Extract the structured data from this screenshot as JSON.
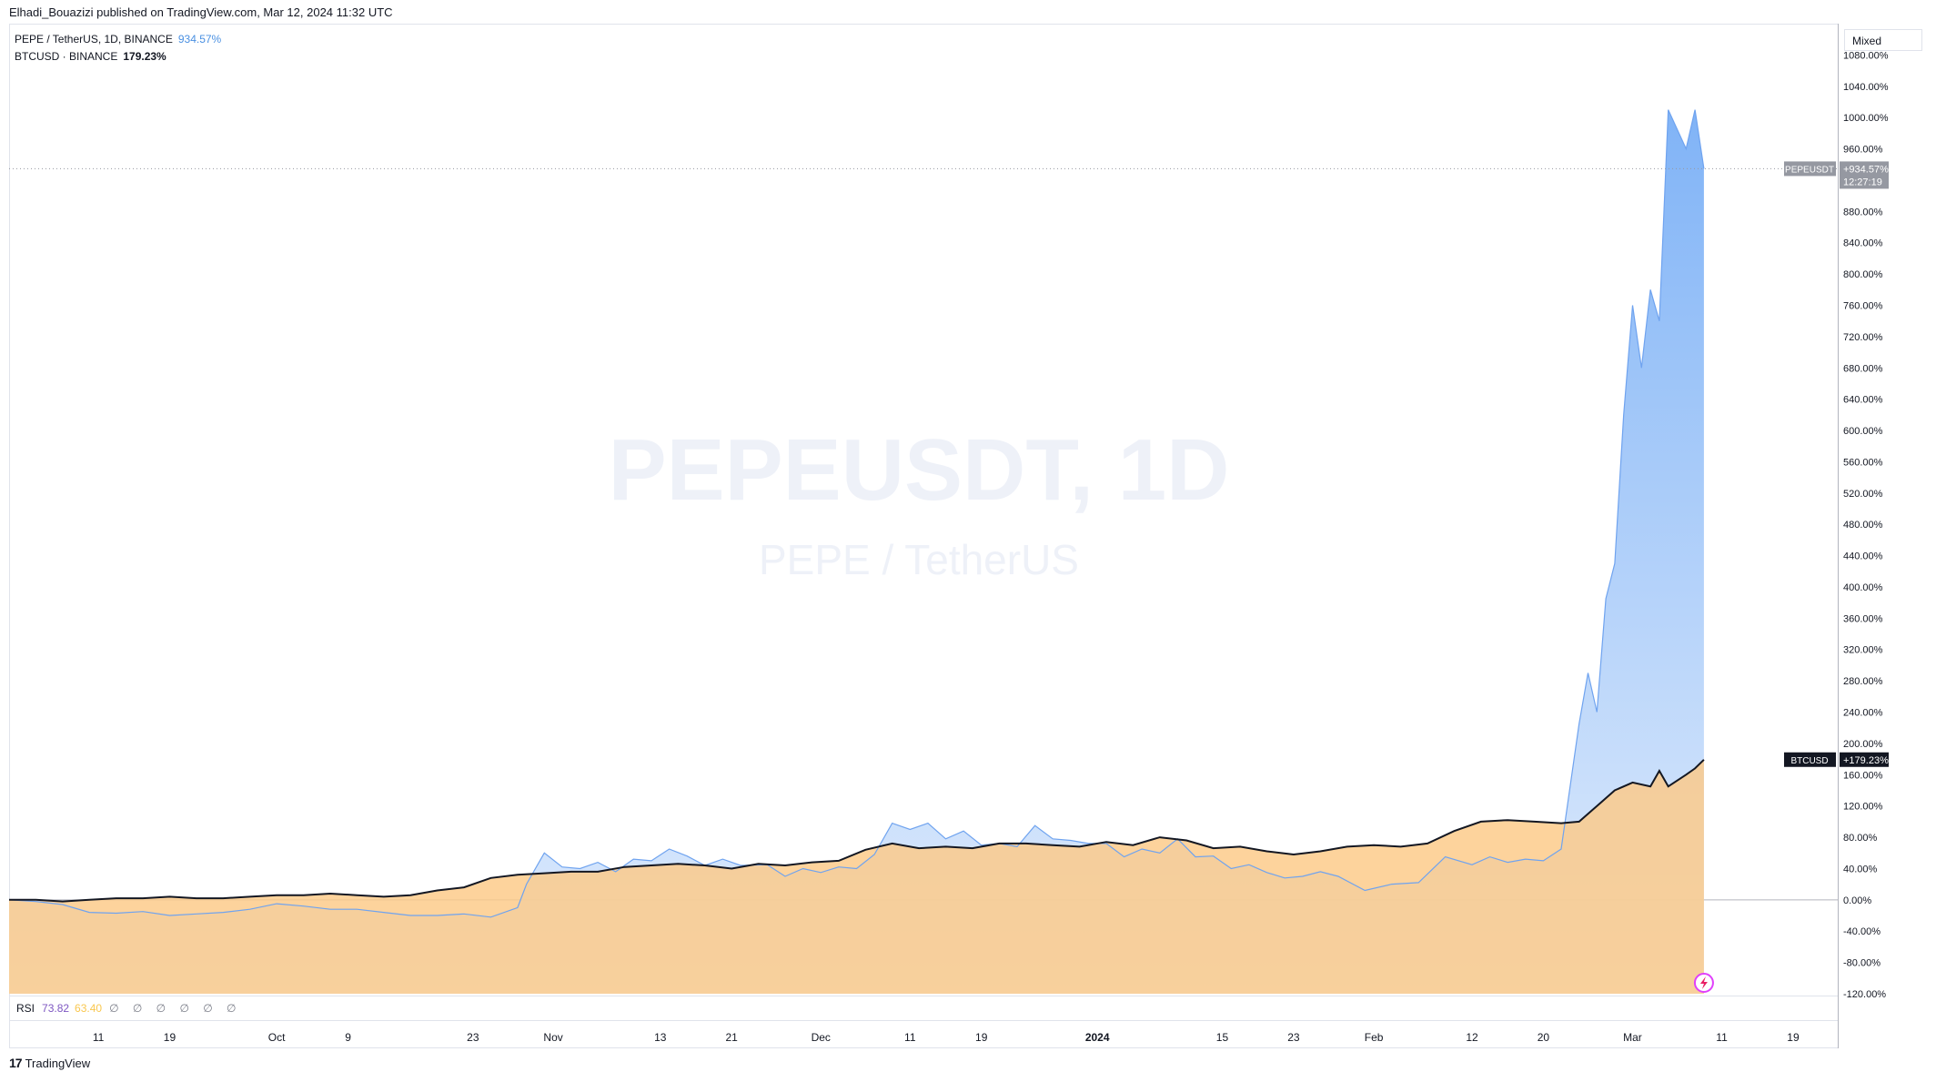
{
  "header": {
    "publisher_line": "Elhadi_Bouazizi published on TradingView.com, Mar 12, 2024 11:32 UTC"
  },
  "legend": {
    "pepe_label": "PEPE / TetherUS, 1D, BINANCE",
    "pepe_value": "934.57%",
    "btc_label": "BTCUSD · BINANCE",
    "btc_value": "179.23%"
  },
  "watermark": {
    "symbol": "PEPEUSDT, 1D",
    "pair": "PEPE / TetherUS"
  },
  "scale_mode": "Mixed",
  "rsi": {
    "label": "RSI",
    "value1": "73.82",
    "value2": "63.40",
    "nulls": "∅ ∅ ∅ ∅ ∅ ∅"
  },
  "footer": {
    "brand": "TradingView",
    "logo_glyph": "17"
  },
  "colors": {
    "pepe_line": "#6fa3ef",
    "pepe_fill_top": "#6aa6f5",
    "pepe_fill_bottom": "#dbe9fc",
    "btc_line": "#131722",
    "btc_fill": "#fcc986",
    "overlap_fill": "#d7bf9c",
    "pepe_tag": "#9598a1",
    "btc_tag": "#131722"
  },
  "chart_data": {
    "type": "area",
    "title": "PEPEUSDT, 1D",
    "ylabel": "",
    "xlabel": "",
    "ylim": [
      -120,
      1120
    ],
    "y_ticks": [
      1080,
      1040,
      1000,
      960,
      880,
      840,
      800,
      760,
      720,
      680,
      640,
      600,
      560,
      520,
      480,
      440,
      400,
      360,
      320,
      280,
      240,
      200,
      160,
      120,
      80,
      40,
      0,
      -40,
      -80,
      -120
    ],
    "x_ticks": [
      "11",
      "19",
      "Oct",
      "9",
      "23",
      "Nov",
      "13",
      "21",
      "Dec",
      "11",
      "19",
      "2024",
      "15",
      "23",
      "Feb",
      "12",
      "20",
      "Mar",
      "11",
      "19"
    ],
    "x_range": [
      "2023-09-01",
      "2024-03-24"
    ],
    "series": [
      {
        "name": "PEPEUSDT",
        "unit": "%",
        "last_label": "+934.57%",
        "countdown": "12:27:19",
        "points": [
          [
            "2023-09-01",
            0
          ],
          [
            "2023-09-04",
            -2
          ],
          [
            "2023-09-07",
            -6
          ],
          [
            "2023-09-10",
            -16
          ],
          [
            "2023-09-13",
            -17
          ],
          [
            "2023-09-16",
            -15
          ],
          [
            "2023-09-19",
            -20
          ],
          [
            "2023-09-22",
            -18
          ],
          [
            "2023-09-25",
            -16
          ],
          [
            "2023-09-28",
            -12
          ],
          [
            "2023-10-01",
            -5
          ],
          [
            "2023-10-04",
            -8
          ],
          [
            "2023-10-07",
            -12
          ],
          [
            "2023-10-10",
            -12
          ],
          [
            "2023-10-13",
            -16
          ],
          [
            "2023-10-16",
            -20
          ],
          [
            "2023-10-19",
            -20
          ],
          [
            "2023-10-22",
            -18
          ],
          [
            "2023-10-25",
            -22
          ],
          [
            "2023-10-28",
            -10
          ],
          [
            "2023-10-29",
            20
          ],
          [
            "2023-10-31",
            60
          ],
          [
            "2023-11-02",
            42
          ],
          [
            "2023-11-04",
            40
          ],
          [
            "2023-11-06",
            48
          ],
          [
            "2023-11-08",
            36
          ],
          [
            "2023-11-10",
            52
          ],
          [
            "2023-11-12",
            50
          ],
          [
            "2023-11-14",
            65
          ],
          [
            "2023-11-16",
            56
          ],
          [
            "2023-11-18",
            44
          ],
          [
            "2023-11-20",
            52
          ],
          [
            "2023-11-22",
            44
          ],
          [
            "2023-11-25",
            45
          ],
          [
            "2023-11-27",
            30
          ],
          [
            "2023-11-29",
            40
          ],
          [
            "2023-12-01",
            35
          ],
          [
            "2023-12-03",
            42
          ],
          [
            "2023-12-05",
            40
          ],
          [
            "2023-12-07",
            58
          ],
          [
            "2023-12-09",
            98
          ],
          [
            "2023-12-11",
            90
          ],
          [
            "2023-12-13",
            98
          ],
          [
            "2023-12-15",
            78
          ],
          [
            "2023-12-17",
            88
          ],
          [
            "2023-12-19",
            70
          ],
          [
            "2023-12-21",
            72
          ],
          [
            "2023-12-23",
            68
          ],
          [
            "2023-12-25",
            95
          ],
          [
            "2023-12-27",
            78
          ],
          [
            "2023-12-29",
            76
          ],
          [
            "2023-12-31",
            72
          ],
          [
            "2024-01-02",
            72
          ],
          [
            "2024-01-04",
            55
          ],
          [
            "2024-01-06",
            65
          ],
          [
            "2024-01-08",
            60
          ],
          [
            "2024-01-10",
            78
          ],
          [
            "2024-01-12",
            55
          ],
          [
            "2024-01-14",
            56
          ],
          [
            "2024-01-16",
            40
          ],
          [
            "2024-01-18",
            45
          ],
          [
            "2024-01-20",
            35
          ],
          [
            "2024-01-22",
            28
          ],
          [
            "2024-01-24",
            30
          ],
          [
            "2024-01-26",
            36
          ],
          [
            "2024-01-28",
            30
          ],
          [
            "2024-01-31",
            12
          ],
          [
            "2024-02-03",
            20
          ],
          [
            "2024-02-06",
            22
          ],
          [
            "2024-02-09",
            55
          ],
          [
            "2024-02-12",
            45
          ],
          [
            "2024-02-14",
            55
          ],
          [
            "2024-02-16",
            48
          ],
          [
            "2024-02-18",
            52
          ],
          [
            "2024-02-20",
            50
          ],
          [
            "2024-02-22",
            65
          ],
          [
            "2024-02-24",
            225
          ],
          [
            "2024-02-25",
            290
          ],
          [
            "2024-02-26",
            240
          ],
          [
            "2024-02-27",
            385
          ],
          [
            "2024-02-28",
            430
          ],
          [
            "2024-02-29",
            620
          ],
          [
            "2024-03-01",
            760
          ],
          [
            "2024-03-02",
            680
          ],
          [
            "2024-03-03",
            780
          ],
          [
            "2024-03-04",
            740
          ],
          [
            "2024-03-05",
            1010
          ],
          [
            "2024-03-07",
            960
          ],
          [
            "2024-03-08",
            1010
          ],
          [
            "2024-03-09",
            934.57
          ]
        ]
      },
      {
        "name": "BTCUSD",
        "unit": "%",
        "last_label": "+179.23%",
        "points": [
          [
            "2023-09-01",
            0
          ],
          [
            "2023-09-04",
            0
          ],
          [
            "2023-09-07",
            -2
          ],
          [
            "2023-09-10",
            0
          ],
          [
            "2023-09-13",
            2
          ],
          [
            "2023-09-16",
            2
          ],
          [
            "2023-09-19",
            4
          ],
          [
            "2023-09-22",
            2
          ],
          [
            "2023-09-25",
            2
          ],
          [
            "2023-09-28",
            4
          ],
          [
            "2023-10-01",
            6
          ],
          [
            "2023-10-04",
            6
          ],
          [
            "2023-10-07",
            8
          ],
          [
            "2023-10-10",
            6
          ],
          [
            "2023-10-13",
            4
          ],
          [
            "2023-10-16",
            6
          ],
          [
            "2023-10-19",
            12
          ],
          [
            "2023-10-22",
            16
          ],
          [
            "2023-10-25",
            28
          ],
          [
            "2023-10-28",
            32
          ],
          [
            "2023-10-31",
            34
          ],
          [
            "2023-11-03",
            36
          ],
          [
            "2023-11-06",
            36
          ],
          [
            "2023-11-09",
            42
          ],
          [
            "2023-11-12",
            44
          ],
          [
            "2023-11-15",
            46
          ],
          [
            "2023-11-18",
            44
          ],
          [
            "2023-11-21",
            40
          ],
          [
            "2023-11-24",
            46
          ],
          [
            "2023-11-27",
            44
          ],
          [
            "2023-11-30",
            48
          ],
          [
            "2023-12-03",
            50
          ],
          [
            "2023-12-06",
            64
          ],
          [
            "2023-12-09",
            72
          ],
          [
            "2023-12-12",
            66
          ],
          [
            "2023-12-15",
            68
          ],
          [
            "2023-12-18",
            66
          ],
          [
            "2023-12-21",
            72
          ],
          [
            "2023-12-24",
            72
          ],
          [
            "2023-12-27",
            70
          ],
          [
            "2023-12-30",
            68
          ],
          [
            "2024-01-02",
            74
          ],
          [
            "2024-01-05",
            70
          ],
          [
            "2024-01-08",
            80
          ],
          [
            "2024-01-11",
            76
          ],
          [
            "2024-01-14",
            66
          ],
          [
            "2024-01-17",
            68
          ],
          [
            "2024-01-20",
            62
          ],
          [
            "2024-01-23",
            58
          ],
          [
            "2024-01-26",
            62
          ],
          [
            "2024-01-29",
            68
          ],
          [
            "2024-02-01",
            70
          ],
          [
            "2024-02-04",
            68
          ],
          [
            "2024-02-07",
            72
          ],
          [
            "2024-02-10",
            88
          ],
          [
            "2024-02-13",
            100
          ],
          [
            "2024-02-16",
            102
          ],
          [
            "2024-02-19",
            100
          ],
          [
            "2024-02-22",
            98
          ],
          [
            "2024-02-24",
            100
          ],
          [
            "2024-02-26",
            120
          ],
          [
            "2024-02-28",
            140
          ],
          [
            "2024-03-01",
            150
          ],
          [
            "2024-03-03",
            145
          ],
          [
            "2024-03-04",
            165
          ],
          [
            "2024-03-05",
            145
          ],
          [
            "2024-03-07",
            160
          ],
          [
            "2024-03-08",
            168
          ],
          [
            "2024-03-09",
            179.23
          ]
        ]
      }
    ],
    "grid": false,
    "legend_placement": "top-left"
  }
}
